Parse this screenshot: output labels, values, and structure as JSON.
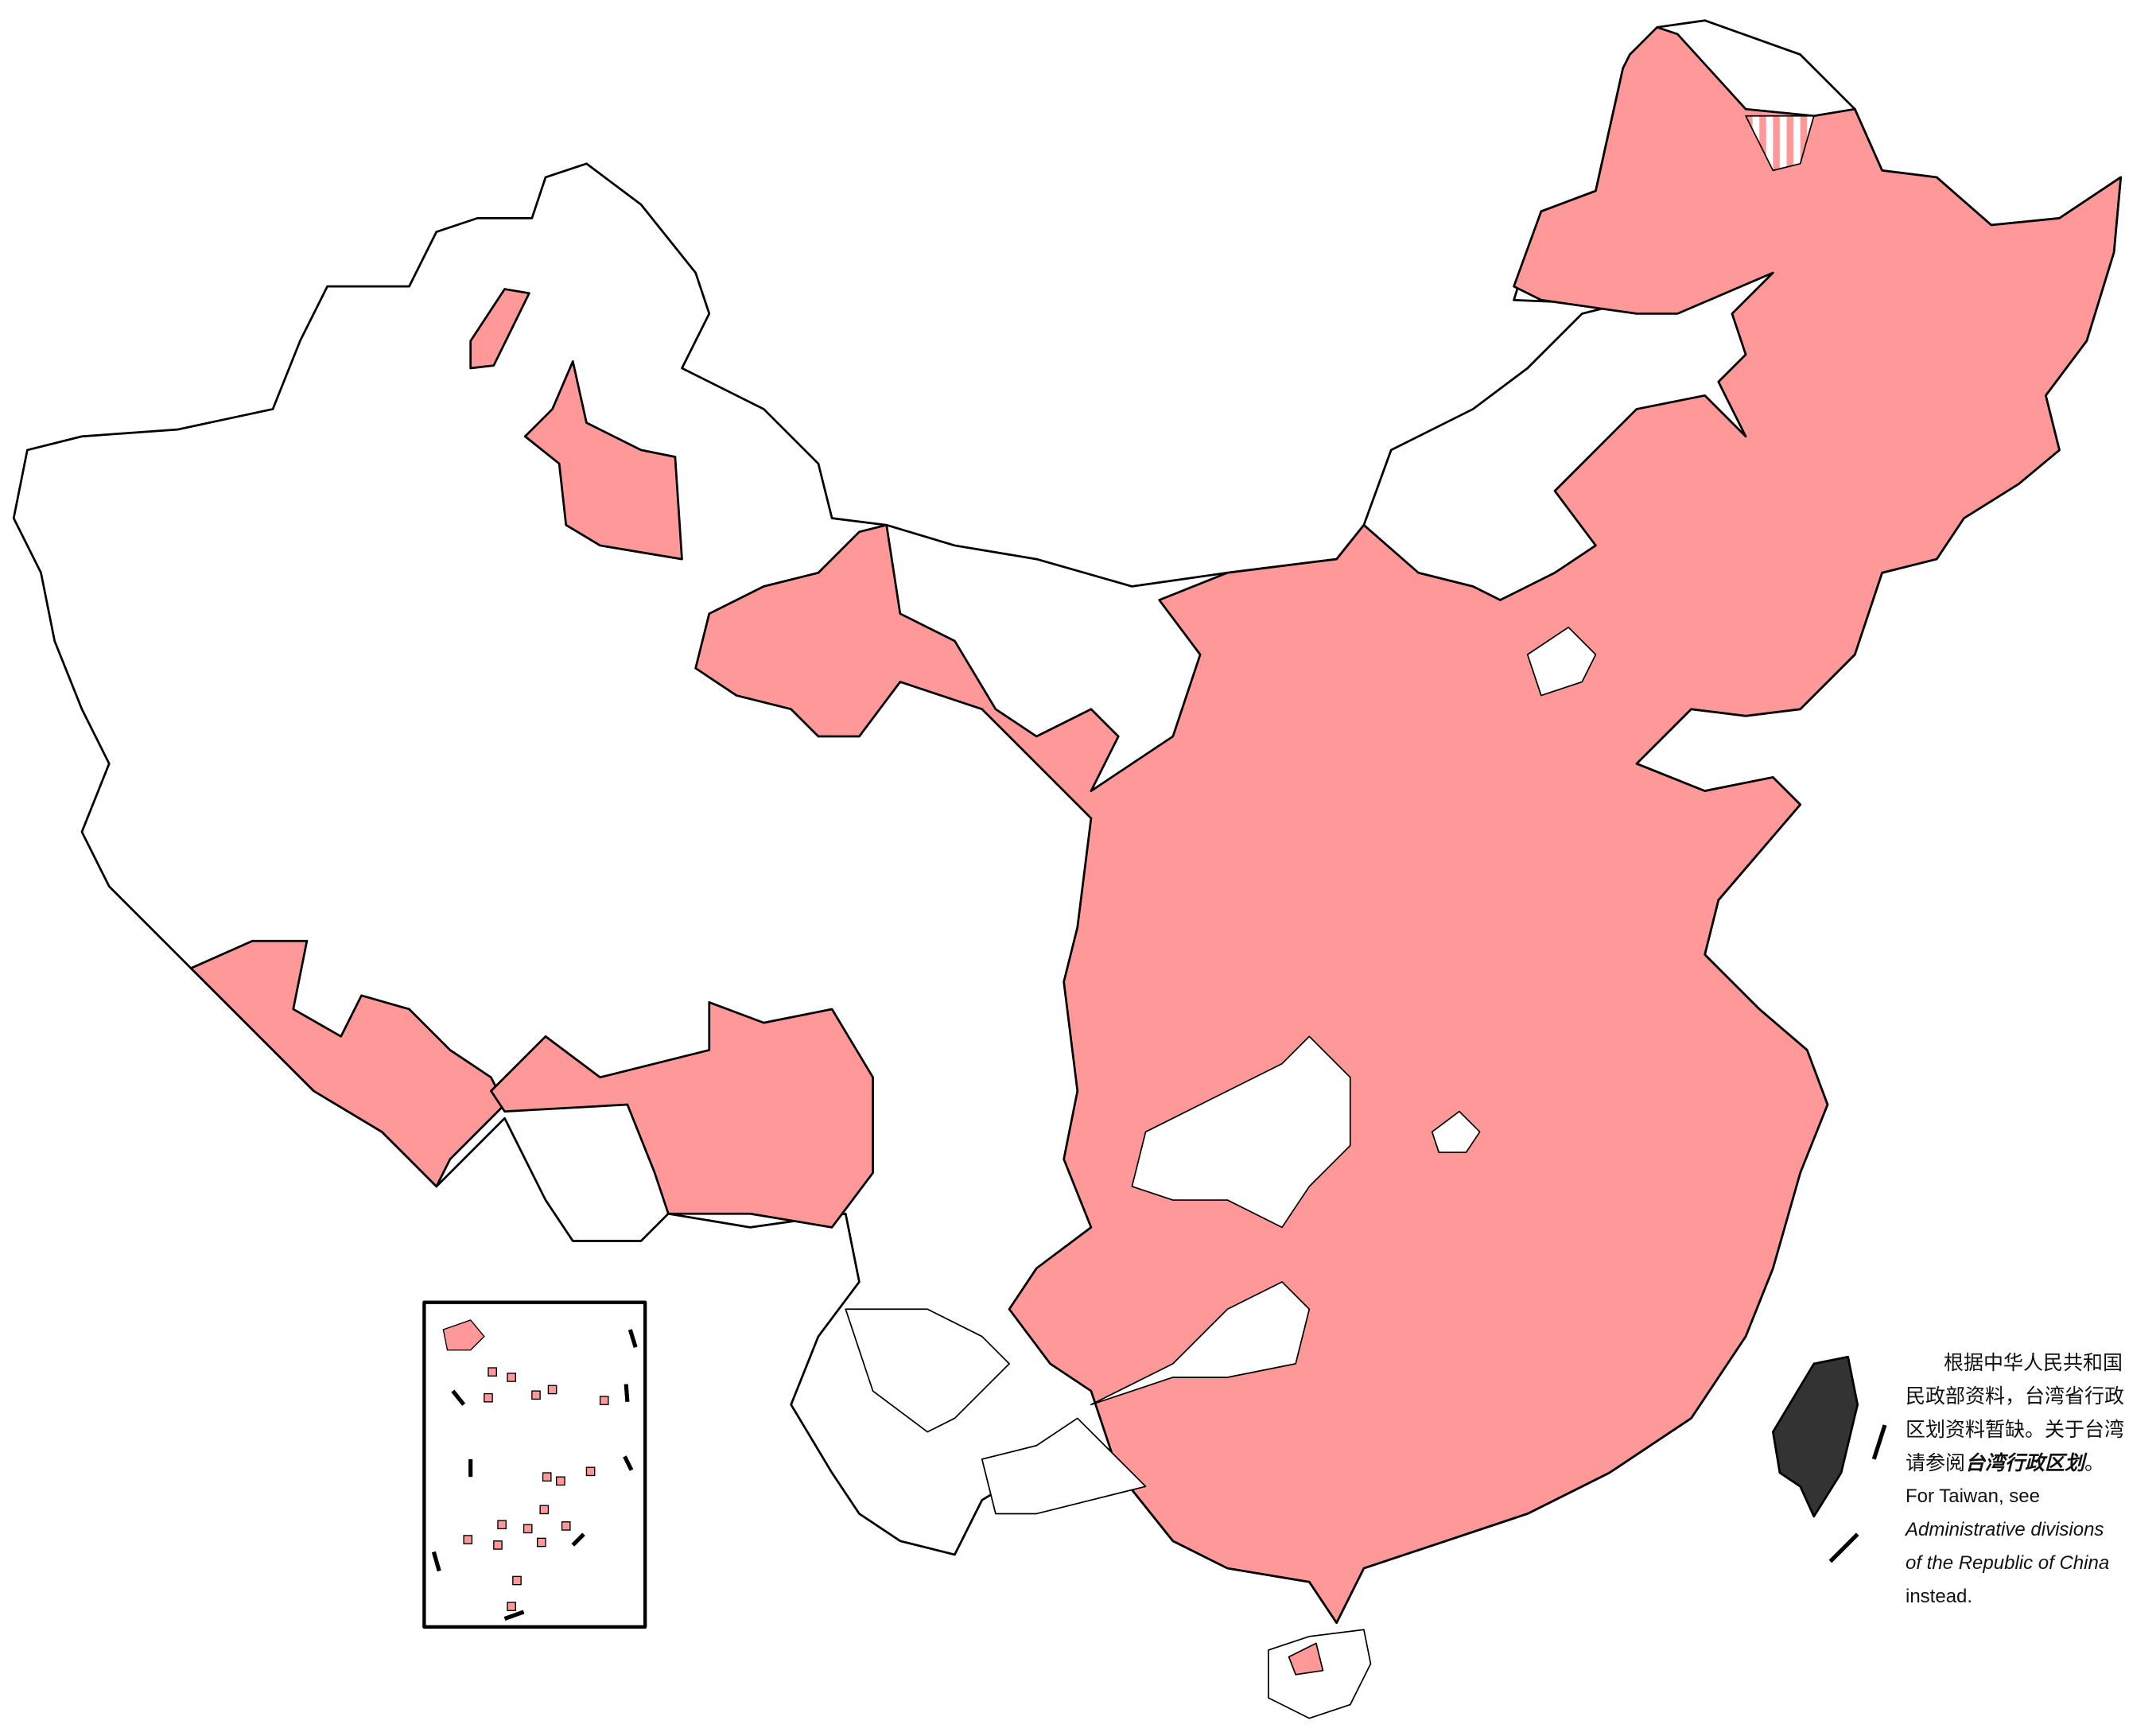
{
  "map": {
    "colors": {
      "highlighted_region": "#FF9999",
      "other_region": "#FFFFFF",
      "taiwan": "#333333",
      "border": "#000000"
    },
    "note": {
      "zh_line1": "根据中华人民共和国",
      "zh_line2": "民政部资料，台湾省行政",
      "zh_line3": "区划资料暂缺。关于台湾",
      "zh_line4_prefix": "请参阅",
      "zh_line4_link": "台湾行政区划",
      "zh_line4_suffix": "。",
      "en_line1": "For Taiwan, see",
      "en_link_line1": "Administrative divisions",
      "en_link_line2": "of the Republic of China",
      "en_line_end": "instead."
    }
  }
}
